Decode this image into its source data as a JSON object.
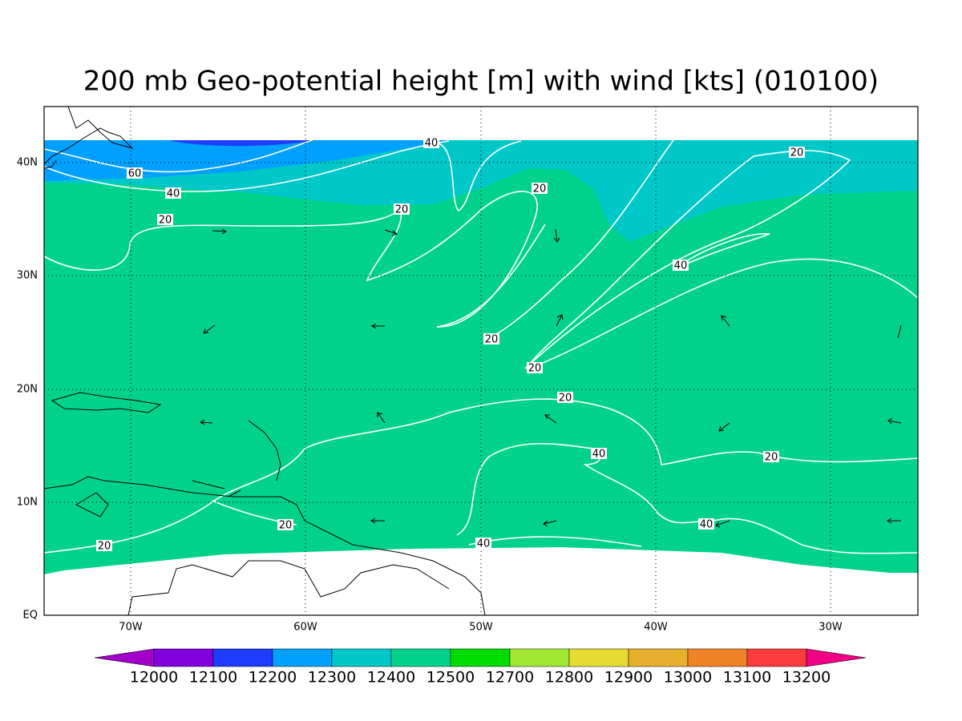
{
  "title": "200 mb Geo-potential height [m] with wind [kts] (010100)",
  "lat_labels": [
    "40N",
    "30N",
    "20N",
    "10N",
    "EQ"
  ],
  "lon_labels": [
    "70W",
    "60W",
    "50W",
    "40W",
    "30W"
  ],
  "contour_labels": [
    "40",
    "60",
    "40",
    "20",
    "20",
    "20",
    "20",
    "40",
    "20",
    "20",
    "20",
    "40",
    "20",
    "20",
    "40",
    "40",
    "20"
  ],
  "colorbar": {
    "labels": [
      12000,
      12100,
      12200,
      12300,
      12400,
      12500,
      12700,
      12800,
      12900,
      13000,
      13100,
      13200
    ],
    "colors": [
      "#a000c8",
      "#8200dc",
      "#1e3cff",
      "#00a0ff",
      "#00c8c8",
      "#00d28c",
      "#00dc00",
      "#a0e632",
      "#e6dc32",
      "#e6af2d",
      "#f08228",
      "#fa3c3c",
      "#f00082"
    ]
  }
}
